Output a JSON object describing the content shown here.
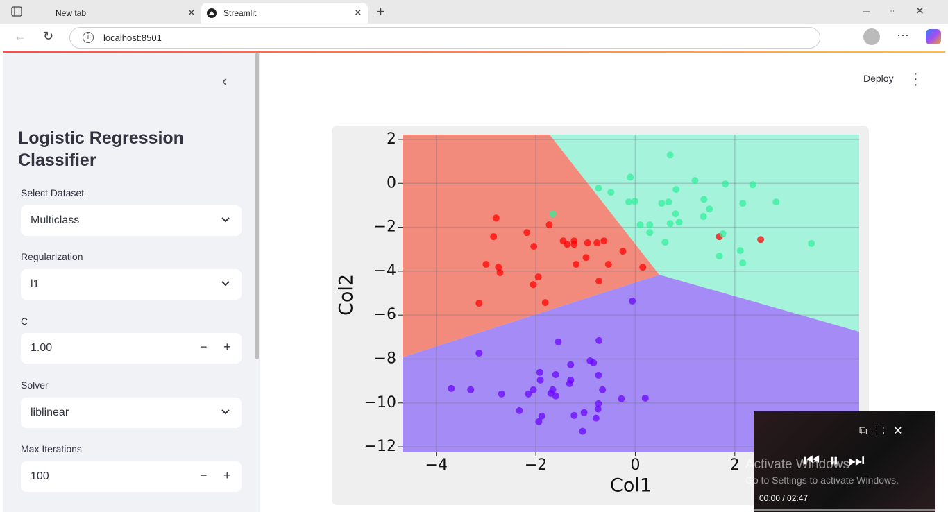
{
  "browser": {
    "tabs": [
      "New tab",
      "Streamlit"
    ],
    "url": "localhost:8501"
  },
  "app": {
    "deploy": "Deploy",
    "sidebar": {
      "title": "Logistic Regression Classifier",
      "fields": [
        {
          "label": "Select Dataset",
          "value": "Multiclass"
        },
        {
          "label": "Regularization",
          "value": "l1"
        },
        {
          "label": "C",
          "value": "1.00"
        },
        {
          "label": "Solver",
          "value": "liblinear"
        },
        {
          "label": "Max Iterations",
          "value": "100"
        }
      ]
    }
  },
  "chart_data": {
    "type": "scatter",
    "x_label": "Col1",
    "y_label": "Col2",
    "xlim": [
      -4.68,
      4.5
    ],
    "ylim": [
      -12.25,
      2.22
    ],
    "xticks": [
      {
        "value": -4,
        "label": "−4"
      },
      {
        "value": -2,
        "label": "−2"
      },
      0,
      2
    ],
    "yticks": [
      2,
      0,
      {
        "value": -2,
        "label": "−2"
      },
      {
        "value": -4,
        "label": "−4"
      },
      {
        "value": -6,
        "label": "−6"
      },
      {
        "value": -8,
        "label": "−8"
      },
      {
        "value": -10,
        "label": "−10"
      },
      {
        "value": -12,
        "label": "−12"
      }
    ],
    "grid": true,
    "series": [
      {
        "color": "#ff0000",
        "x": [
          -2.8,
          -1.73,
          -2.18,
          -2.85,
          -2.04,
          -1.45,
          -1.37,
          -1.23,
          -1.23,
          -0.96,
          -0.77,
          -0.63,
          -0.25,
          -3.0,
          -2.75,
          -2.72,
          -1.95,
          -2.05,
          -0.99,
          -1.19,
          -0.54,
          0.15,
          -0.73,
          -3.14,
          -1.81,
          1.69,
          2.52
        ],
        "y": [
          -1.58,
          -1.89,
          -2.24,
          -2.43,
          -2.87,
          -2.62,
          -2.78,
          -2.62,
          -2.78,
          -2.71,
          -2.71,
          -2.62,
          -3.09,
          -3.69,
          -3.82,
          -4.07,
          -4.26,
          -4.61,
          -3.38,
          -3.69,
          -3.69,
          -3.82,
          -4.45,
          -5.46,
          -5.43,
          -2.43,
          -2.56
        ]
      },
      {
        "color": "#2ef09a",
        "x": [
          0.7,
          1.2,
          -0.1,
          -0.74,
          -0.49,
          1.81,
          2.36,
          1.38,
          2.83,
          2.16,
          -0.13,
          -0.01,
          0.53,
          0.67,
          0.82,
          1.49,
          0.81,
          1.37,
          0.1,
          0.29,
          0.29,
          0.7,
          0.88,
          0.6,
          1.76,
          1.69,
          2.11,
          2.16,
          3.54,
          -1.66
        ],
        "y": [
          1.29,
          0.13,
          0.28,
          -0.22,
          -0.41,
          -0.03,
          -0.06,
          -0.73,
          -0.85,
          -0.91,
          -0.85,
          -0.82,
          -0.91,
          -0.85,
          -0.28,
          -1.17,
          -1.39,
          -1.51,
          -1.89,
          -1.89,
          -2.24,
          -1.83,
          -1.77,
          -2.68,
          -2.3,
          -3.31,
          -3.06,
          -3.63,
          -2.74,
          -1.39
        ]
      },
      {
        "color": "#6a00ff",
        "x": [
          -0.73,
          -1.55,
          -3.14,
          -0.91,
          -0.84,
          -1.3,
          -1.92,
          -1.6,
          -1.91,
          -1.3,
          -1.32,
          -0.74,
          -3.7,
          -3.31,
          -2.69,
          -2.05,
          -2.15,
          -1.66,
          -1.7,
          -1.6,
          -0.66,
          -0.28,
          0.2,
          -0.74,
          -2.33,
          -0.75,
          -1.88,
          -1.94,
          -1.23,
          -1.03,
          -0.79,
          -1.06,
          -0.06
        ],
        "y": [
          -7.16,
          -7.22,
          -7.73,
          -8.08,
          -8.17,
          -8.26,
          -8.61,
          -8.71,
          -8.96,
          -8.96,
          -9.12,
          -8.74,
          -9.34,
          -9.4,
          -9.59,
          -9.4,
          -9.59,
          -9.4,
          -9.56,
          -9.68,
          -9.4,
          -9.81,
          -9.78,
          -10.03,
          -10.35,
          -10.28,
          -10.6,
          -10.85,
          -10.57,
          -10.44,
          -10.69,
          -11.29,
          -5.36
        ]
      }
    ]
  },
  "overlay": {
    "watermark_title": "Activate Windows",
    "watermark_text": "Go to Settings to activate Windows.",
    "time": "00:00 / 02:47"
  }
}
